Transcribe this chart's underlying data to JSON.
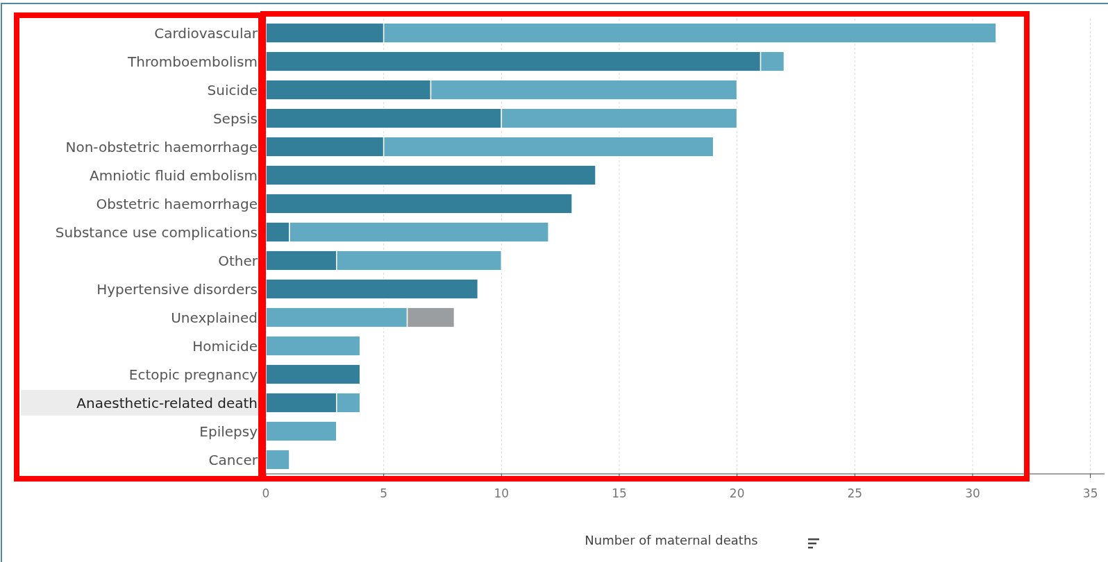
{
  "chart_data": {
    "type": "bar",
    "orientation": "horizontal",
    "stacked": true,
    "xlabel": "Number of maternal deaths",
    "categories": [
      "Cardiovascular",
      "Thromboembolism",
      "Suicide",
      "Sepsis",
      "Non-obstetric haemorrhage",
      "Amniotic fluid embolism",
      "Obstetric haemorrhage",
      "Substance use complications",
      "Other",
      "Hypertensive disorders",
      "Unexplained",
      "Homicide",
      "Ectopic pregnancy",
      "Anaesthetic-related death",
      "Epilepsy",
      "Cancer"
    ],
    "series": [
      {
        "color": "#337f99",
        "values": [
          5,
          21,
          7,
          10,
          5,
          14,
          13,
          1,
          3,
          9,
          null,
          null,
          4,
          3,
          null,
          null
        ]
      },
      {
        "color": "#62aac1",
        "values": [
          26,
          1,
          13,
          10,
          14,
          null,
          null,
          11,
          7,
          null,
          6,
          4,
          null,
          1,
          3,
          1
        ]
      },
      {
        "color": "#9b9ea0",
        "values": [
          null,
          null,
          null,
          null,
          null,
          null,
          null,
          null,
          null,
          null,
          2,
          null,
          null,
          null,
          null,
          null
        ]
      }
    ],
    "xlim": [
      0,
      35.6
    ],
    "xticks": [
      0,
      5,
      10,
      15,
      20,
      25,
      30,
      35
    ],
    "grid": "x"
  }
}
